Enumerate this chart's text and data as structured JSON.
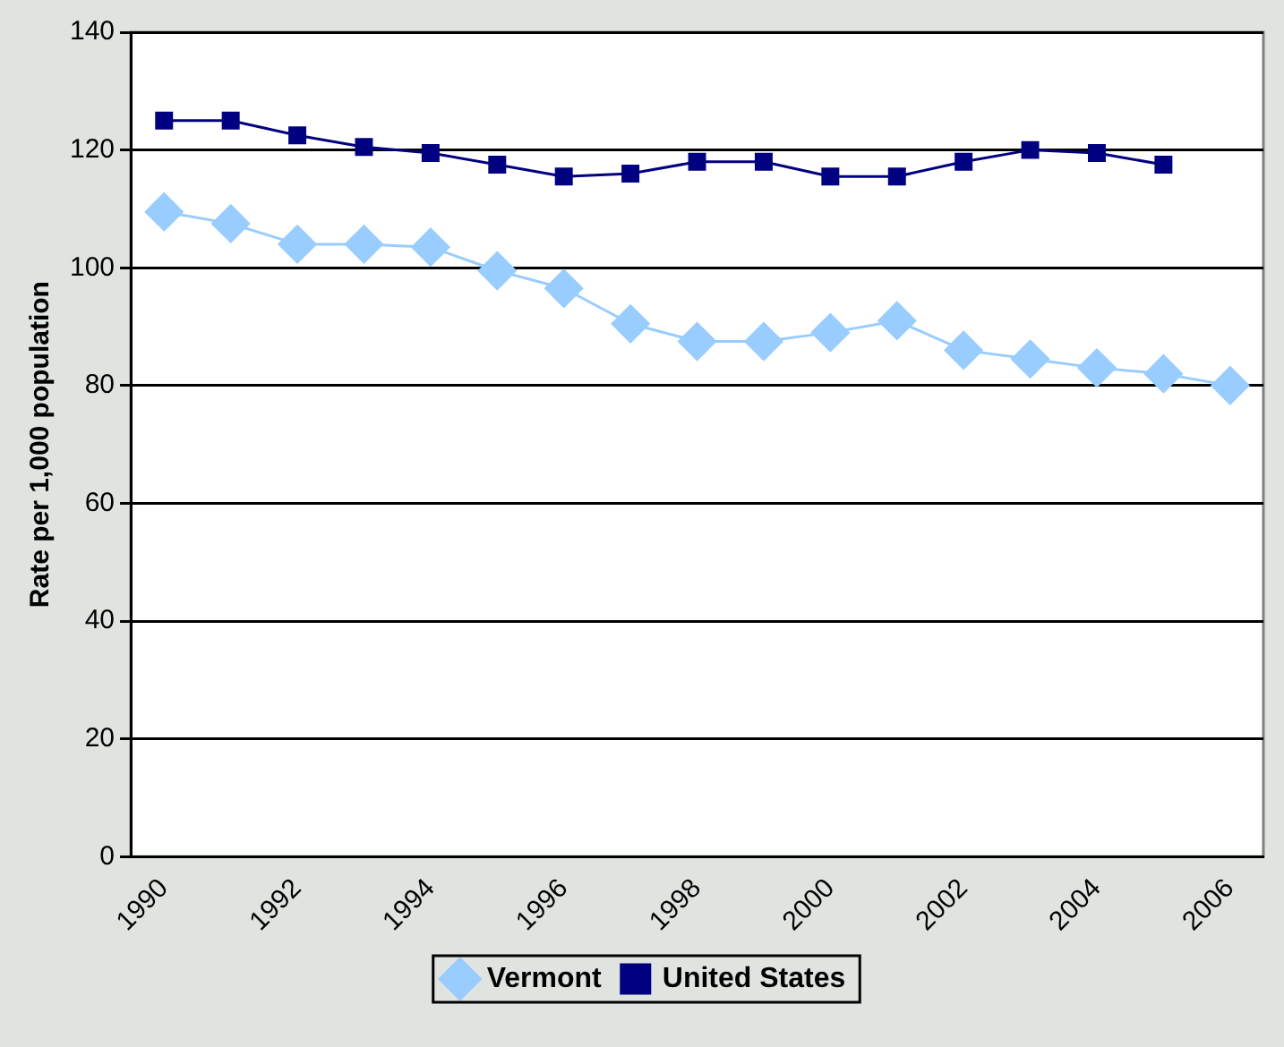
{
  "chart_data": {
    "type": "line",
    "ylabel": "Rate per 1,000 population",
    "categories": [
      "1990",
      null,
      "1992",
      null,
      "1994",
      null,
      "1996",
      null,
      "1998",
      null,
      "2000",
      null,
      "2002",
      null,
      "2004",
      null,
      "2006"
    ],
    "series": [
      {
        "name": "Vermont",
        "color": "#99ccff",
        "marker": "diamond",
        "values": [
          109.5,
          107.5,
          104,
          104,
          103.5,
          99.5,
          96.5,
          90.5,
          87.5,
          87.5,
          89,
          91,
          86,
          84.5,
          83,
          82,
          80
        ]
      },
      {
        "name": "United States",
        "color": "#000080",
        "marker": "square",
        "values": [
          125,
          125,
          122.5,
          120.5,
          119.5,
          117.5,
          115.5,
          116,
          118,
          118,
          115.5,
          115.5,
          118,
          120,
          119.5,
          117.5,
          null
        ]
      }
    ],
    "ylim": [
      0,
      140
    ],
    "yticks": [
      0,
      20,
      40,
      60,
      80,
      100,
      120,
      140
    ],
    "grid": "y",
    "legend": "bottom"
  }
}
